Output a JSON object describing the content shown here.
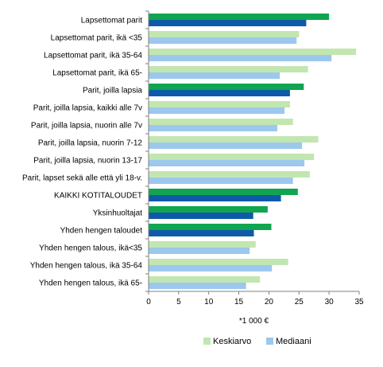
{
  "chart_data": {
    "type": "bar",
    "orientation": "horizontal",
    "categories": [
      "Lapsettomat parit",
      "Lapsettomat parit, ikä <35",
      "Lapsettomat parit, ikä 35-64",
      "Lapsettomat parit, ikä 65-",
      "Parit, joilla lapsia",
      "Parit, joilla lapsia, kaikki alle 7v",
      "Parit, joilla lapsia, nuorin alle 7v",
      "Parit, joilla lapsia, nuorin 7-12",
      "Parit, joilla lapsia, nuorin 13-17",
      "Parit, lapset sekä alle että yli 18-v.",
      "KAIKKI KOTITALOUDET",
      "Yksinhuoltajat",
      "Yhden hengen taloudet",
      "Yhden hengen talous, ikä<35",
      "Yhden hengen talous, ikä 35-64",
      "Yhden hengen talous, ikä 65-"
    ],
    "series": [
      {
        "name": "Keskiarvo",
        "values": [
          30.0,
          25.0,
          34.5,
          26.5,
          25.8,
          23.5,
          24.0,
          28.2,
          27.5,
          26.8,
          24.8,
          19.8,
          20.4,
          17.8,
          23.2,
          18.5
        ]
      },
      {
        "name": "Mediaani",
        "values": [
          26.2,
          24.6,
          30.4,
          21.8,
          23.5,
          22.6,
          21.4,
          25.5,
          25.9,
          24.0,
          22.0,
          17.4,
          17.5,
          16.8,
          20.5,
          16.2
        ]
      }
    ],
    "highlight_categories": [
      "Lapsettomat parit",
      "Parit, joilla lapsia",
      "KAIKKI KOTITALOUDET",
      "Yksinhuoltajat",
      "Yhden hengen taloudet"
    ],
    "colors": {
      "Keskiarvo": "#c2e6b0",
      "Mediaani": "#9cc8ee",
      "Keskiarvo_highlight": "#10a550",
      "Mediaani_highlight": "#0e5aa8"
    },
    "xlim": [
      0,
      35
    ],
    "xticks": [
      0,
      5,
      10,
      15,
      20,
      25,
      30,
      35
    ],
    "xlabel": "*1 000  €",
    "grid": false,
    "legend_position": "bottom-right"
  }
}
